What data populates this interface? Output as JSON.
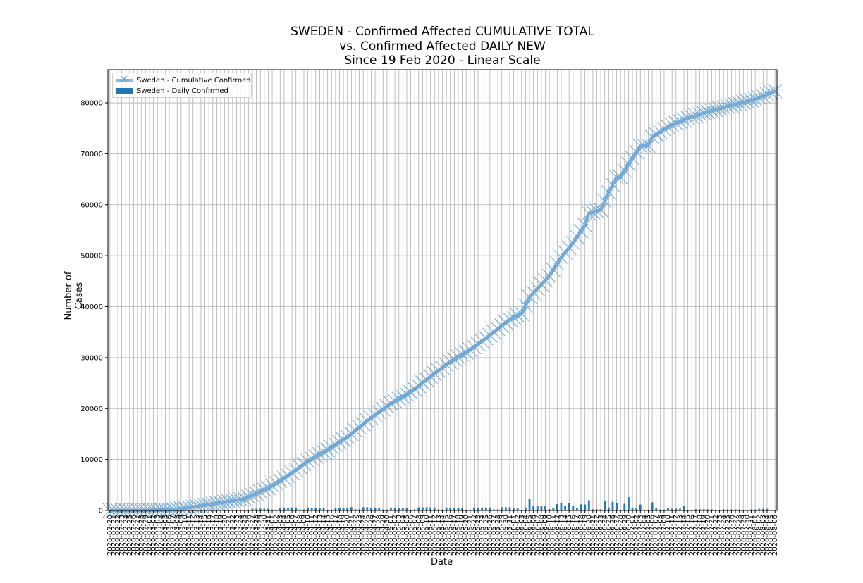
{
  "title_lines": [
    "SWEDEN - Confirmed Affected CUMULATIVE TOTAL",
    "vs. Confirmed Affected DAILY NEW",
    "Since 19 Feb 2020 - Linear Scale"
  ],
  "chart_data": {
    "type": "line",
    "xlabel": "Date",
    "ylabel": "Number of Cases",
    "ylim": [
      0,
      86500
    ],
    "y_ticks": [
      0,
      10000,
      20000,
      30000,
      40000,
      50000,
      60000,
      70000,
      80000
    ],
    "x_start_label": "2020-02-20",
    "x_end_label": "2020-08-06",
    "grid": true,
    "legend_position": "top-left",
    "series": [
      {
        "name": "Sweden - Cumulative Confirmed",
        "type": "line",
        "color": "#7ab0da",
        "marker": "x"
      },
      {
        "name": "Sweden - Daily Confirmed",
        "type": "bar",
        "color": "#1f77b4"
      }
    ],
    "cumulative_keypoints": [
      [
        "2020-02-20",
        0
      ],
      [
        "2020-02-29",
        10
      ],
      [
        "2020-03-07",
        140
      ],
      [
        "2020-03-12",
        700
      ],
      [
        "2020-03-20",
        1650
      ],
      [
        "2020-03-25",
        2300
      ],
      [
        "2020-03-31",
        4400
      ],
      [
        "2020-04-05",
        6800
      ],
      [
        "2020-04-10",
        9700
      ],
      [
        "2020-04-15",
        11900
      ],
      [
        "2020-04-20",
        14400
      ],
      [
        "2020-04-25",
        17600
      ],
      [
        "2020-05-01",
        21000
      ],
      [
        "2020-05-06",
        23200
      ],
      [
        "2020-05-11",
        26300
      ],
      [
        "2020-05-16",
        29200
      ],
      [
        "2020-05-21",
        31500
      ],
      [
        "2020-05-26",
        34400
      ],
      [
        "2020-05-31",
        37500
      ],
      [
        "2020-06-03",
        38600
      ],
      [
        "2020-06-05",
        41900
      ],
      [
        "2020-06-10",
        46000
      ],
      [
        "2020-06-13",
        49700
      ],
      [
        "2020-06-16",
        52500
      ],
      [
        "2020-06-19",
        56000
      ],
      [
        "2020-06-20",
        58300
      ],
      [
        "2020-06-23",
        59000
      ],
      [
        "2020-06-25",
        62400
      ],
      [
        "2020-06-27",
        65400
      ],
      [
        "2020-06-28",
        65400
      ],
      [
        "2020-06-30",
        68000
      ],
      [
        "2020-07-03",
        71500
      ],
      [
        "2020-07-05",
        71600
      ],
      [
        "2020-07-06",
        73300
      ],
      [
        "2020-07-10",
        75300
      ],
      [
        "2020-07-15",
        77000
      ],
      [
        "2020-07-19",
        78000
      ],
      [
        "2020-07-24",
        79100
      ],
      [
        "2020-07-29",
        80100
      ],
      [
        "2020-08-01",
        80700
      ],
      [
        "2020-08-06",
        82300
      ]
    ],
    "daily_spikes": [
      [
        "2020-06-05",
        2300
      ],
      [
        "2020-06-15",
        1450
      ],
      [
        "2020-06-20",
        2000
      ],
      [
        "2020-06-24",
        1850
      ],
      [
        "2020-06-26",
        1700
      ],
      [
        "2020-06-30",
        2600
      ],
      [
        "2020-07-06",
        1600
      ],
      [
        "2020-07-14",
        900
      ],
      [
        "2020-06-13",
        1400
      ],
      [
        "2020-06-18",
        1200
      ]
    ]
  }
}
